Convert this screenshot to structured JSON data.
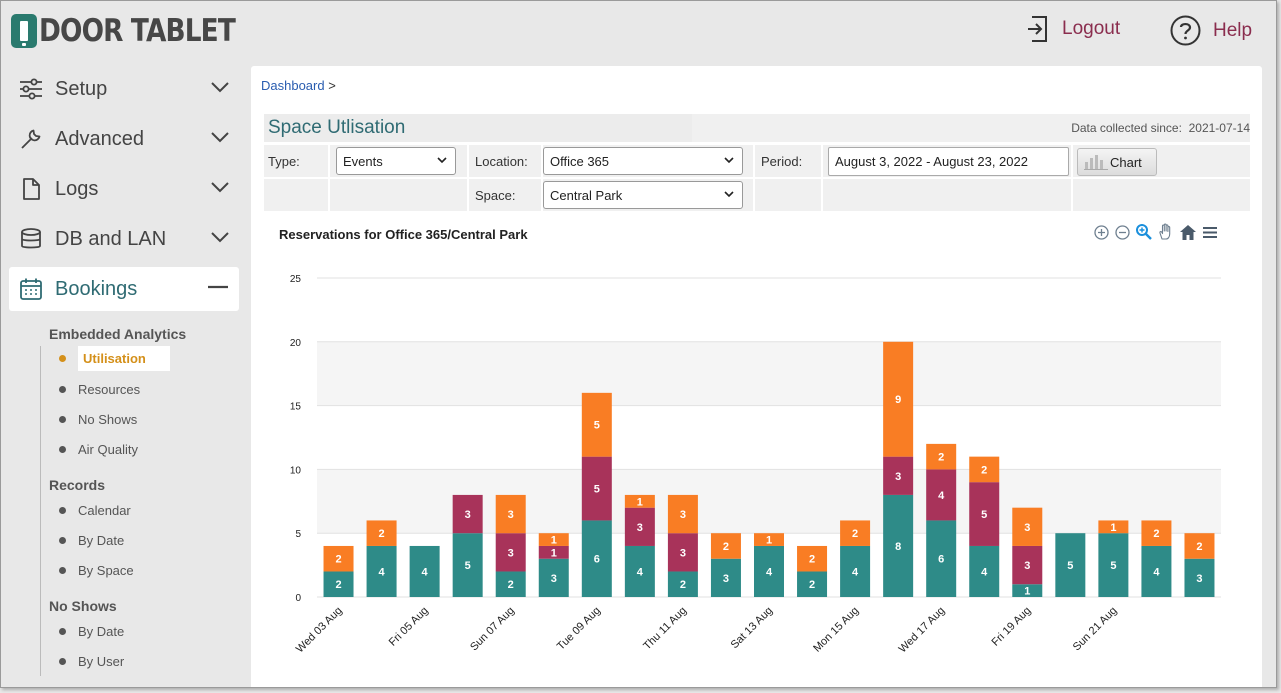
{
  "header": {
    "logo_text": "DOOR TABLET",
    "logout_label": "Logout",
    "help_label": "Help"
  },
  "sidebar": {
    "items": [
      {
        "label": "Setup",
        "icon": "sliders-icon"
      },
      {
        "label": "Advanced",
        "icon": "wrench-icon"
      },
      {
        "label": "Logs",
        "icon": "file-icon"
      },
      {
        "label": "DB and LAN",
        "icon": "database-icon"
      },
      {
        "label": "Bookings",
        "icon": "calendar-icon"
      }
    ],
    "groups": [
      {
        "title": "Embedded Analytics",
        "items": [
          "Utilisation",
          "Resources",
          "No Shows",
          "Air Quality"
        ]
      },
      {
        "title": "Records",
        "items": [
          "Calendar",
          "By Date",
          "By Space"
        ]
      },
      {
        "title": "No Shows",
        "items": [
          "By Date",
          "By User"
        ]
      }
    ],
    "selected": "Utilisation"
  },
  "breadcrumb": {
    "link": "Dashboard",
    "sep": ">"
  },
  "page": {
    "title": "Space Utlisation",
    "since_label": "Data collected since:",
    "since_value": "2021-07-14"
  },
  "filters": {
    "type_label": "Type:",
    "type_value": "Events",
    "location_label": "Location:",
    "location_value": "Office 365",
    "period_label": "Period:",
    "period_value": "August 3, 2022 - August 23, 2022",
    "chart_button": "Chart",
    "space_label": "Space:",
    "space_value": "Central Park"
  },
  "colors": {
    "teal": "#2e8b88",
    "maroon": "#a8335a",
    "orange": "#f97d24",
    "accent": "#8a2d4e",
    "title": "#2f6b73"
  },
  "chart_data": {
    "type": "bar",
    "stacked": true,
    "title": "Reservations for Office 365/Central Park",
    "ylim": [
      0,
      25
    ],
    "yticks": [
      0,
      5,
      10,
      15,
      20,
      25
    ],
    "categories": [
      "Wed 03 Aug",
      "Thu 04 Aug",
      "Fri 05 Aug",
      "Sat 06 Aug",
      "Sun 07 Aug",
      "Mon 08 Aug",
      "Tue 09 Aug",
      "Wed 10 Aug",
      "Thu 11 Aug",
      "Fri 12 Aug",
      "Sat 13 Aug",
      "Sun 14 Aug",
      "Mon 15 Aug",
      "Tue 16 Aug",
      "Wed 17 Aug",
      "Thu 18 Aug",
      "Fri 19 Aug",
      "Sat 20 Aug",
      "Sun 21 Aug",
      "Mon 22 Aug",
      "Tue 23 Aug"
    ],
    "xtick_labels": [
      "Wed 03 Aug",
      "",
      "Fri 05 Aug",
      "",
      "Sun 07 Aug",
      "",
      "Tue 09 Aug",
      "",
      "Thu 11 Aug",
      "",
      "Sat 13 Aug",
      "",
      "Mon 15 Aug",
      "",
      "Wed 17 Aug",
      "",
      "Fri 19 Aug",
      "",
      "Sun 21 Aug",
      "",
      ""
    ],
    "series": [
      {
        "values": [
          2,
          4,
          4,
          5,
          2,
          3,
          6,
          4,
          2,
          3,
          4,
          2,
          4,
          8,
          6,
          4,
          1,
          5,
          5,
          4,
          3
        ],
        "color": "#2e8b88"
      },
      {
        "values": [
          0,
          0,
          0,
          3,
          3,
          1,
          5,
          3,
          3,
          0,
          0,
          0,
          0,
          3,
          4,
          5,
          3,
          0,
          0,
          0,
          0
        ],
        "color": "#a8335a"
      },
      {
        "values": [
          2,
          2,
          0,
          0,
          3,
          1,
          5,
          1,
          3,
          2,
          1,
          2,
          2,
          9,
          2,
          2,
          3,
          0,
          1,
          2,
          2
        ],
        "color": "#f97d24"
      }
    ]
  }
}
